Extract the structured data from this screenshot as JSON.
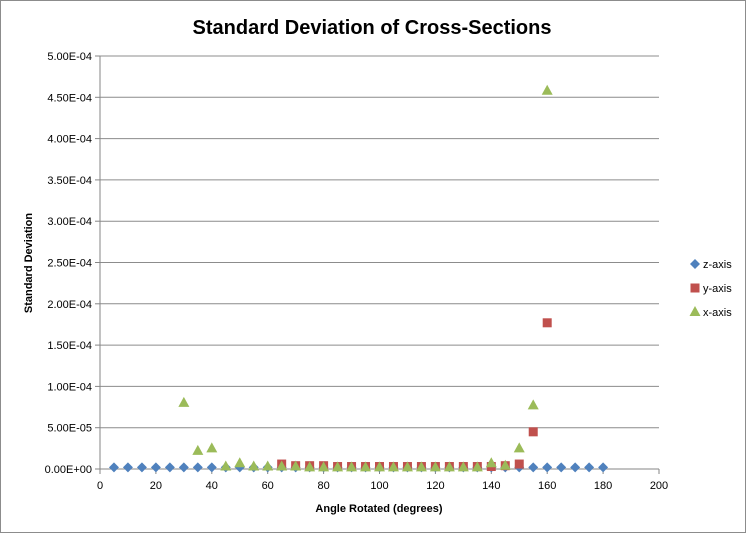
{
  "chart_data": {
    "type": "scatter",
    "title": "Standard Deviation of Cross-Sections",
    "xlabel": "Angle Rotated (degrees)",
    "ylabel": "Standard Deviation",
    "xlim": [
      0,
      200
    ],
    "ylim": [
      0,
      0.0005
    ],
    "x_ticks": [
      0,
      20,
      40,
      60,
      80,
      100,
      120,
      140,
      160,
      180,
      200
    ],
    "x_tick_labels": [
      "0",
      "20",
      "40",
      "60",
      "80",
      "100",
      "120",
      "140",
      "160",
      "180",
      "200"
    ],
    "y_ticks": [
      0,
      5e-05,
      0.0001,
      0.00015,
      0.0002,
      0.00025,
      0.0003,
      0.00035,
      0.0004,
      0.00045,
      0.0005
    ],
    "y_tick_labels": [
      "0.00E+00",
      "5.00E-05",
      "1.00E-04",
      "1.50E-04",
      "2.00E-04",
      "2.50E-04",
      "3.00E-04",
      "3.50E-04",
      "4.00E-04",
      "4.50E-04",
      "5.00E-04"
    ],
    "grid": "horizontal",
    "legend_position": "right",
    "series": [
      {
        "name": "z-axis",
        "marker": "diamond",
        "color": "#4f81bd",
        "points": [
          [
            5,
            2e-06
          ],
          [
            10,
            2e-06
          ],
          [
            15,
            2e-06
          ],
          [
            20,
            2e-06
          ],
          [
            25,
            2e-06
          ],
          [
            30,
            2e-06
          ],
          [
            35,
            2e-06
          ],
          [
            40,
            2e-06
          ],
          [
            45,
            2e-06
          ],
          [
            50,
            2e-06
          ],
          [
            55,
            2e-06
          ],
          [
            60,
            2e-06
          ],
          [
            65,
            2e-06
          ],
          [
            70,
            2e-06
          ],
          [
            75,
            2e-06
          ],
          [
            80,
            2e-06
          ],
          [
            85,
            2e-06
          ],
          [
            90,
            2e-06
          ],
          [
            95,
            2e-06
          ],
          [
            100,
            2e-06
          ],
          [
            105,
            2e-06
          ],
          [
            110,
            2e-06
          ],
          [
            115,
            2e-06
          ],
          [
            120,
            2e-06
          ],
          [
            125,
            2e-06
          ],
          [
            130,
            2e-06
          ],
          [
            135,
            2e-06
          ],
          [
            140,
            2e-06
          ],
          [
            145,
            2e-06
          ],
          [
            150,
            2e-06
          ],
          [
            155,
            2e-06
          ],
          [
            160,
            2e-06
          ],
          [
            165,
            2e-06
          ],
          [
            170,
            2e-06
          ],
          [
            175,
            2e-06
          ],
          [
            180,
            2e-06
          ]
        ]
      },
      {
        "name": "y-axis",
        "marker": "square",
        "color": "#c0504d",
        "points": [
          [
            65,
            6e-06
          ],
          [
            70,
            4e-06
          ],
          [
            75,
            4e-06
          ],
          [
            80,
            4e-06
          ],
          [
            85,
            3e-06
          ],
          [
            90,
            3e-06
          ],
          [
            95,
            3e-06
          ],
          [
            100,
            3e-06
          ],
          [
            105,
            3e-06
          ],
          [
            110,
            3e-06
          ],
          [
            115,
            3e-06
          ],
          [
            120,
            3e-06
          ],
          [
            125,
            3e-06
          ],
          [
            130,
            3e-06
          ],
          [
            135,
            3e-06
          ],
          [
            140,
            3e-06
          ],
          [
            145,
            4e-06
          ],
          [
            150,
            6e-06
          ],
          [
            155,
            4.5e-05
          ],
          [
            160,
            0.000177
          ]
        ]
      },
      {
        "name": "x-axis",
        "marker": "triangle",
        "color": "#9bbb59",
        "points": [
          [
            30,
            8e-05
          ],
          [
            35,
            2.2e-05
          ],
          [
            40,
            2.5e-05
          ],
          [
            45,
            3e-06
          ],
          [
            50,
            7e-06
          ],
          [
            55,
            3e-06
          ],
          [
            60,
            3e-06
          ],
          [
            65,
            3e-06
          ],
          [
            70,
            3e-06
          ],
          [
            75,
            2e-06
          ],
          [
            80,
            2e-06
          ],
          [
            85,
            2e-06
          ],
          [
            90,
            2e-06
          ],
          [
            95,
            2e-06
          ],
          [
            100,
            2e-06
          ],
          [
            105,
            2e-06
          ],
          [
            110,
            2e-06
          ],
          [
            115,
            2e-06
          ],
          [
            120,
            2e-06
          ],
          [
            125,
            2e-06
          ],
          [
            130,
            2e-06
          ],
          [
            135,
            2e-06
          ],
          [
            140,
            7e-06
          ],
          [
            145,
            4e-06
          ],
          [
            150,
            2.5e-05
          ],
          [
            155,
            7.7e-05
          ],
          [
            160,
            0.000458
          ]
        ]
      }
    ]
  }
}
